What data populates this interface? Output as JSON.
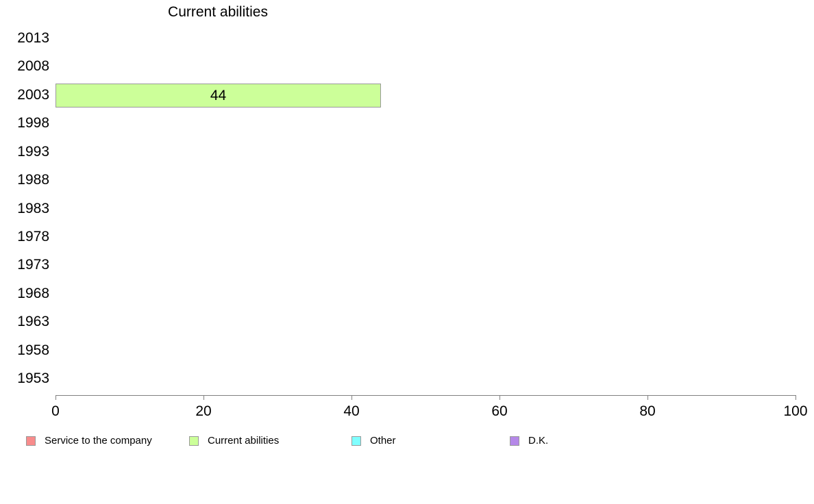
{
  "chart_data": {
    "type": "bar",
    "orientation": "horizontal",
    "title": "Current abilities",
    "categories": [
      "2013",
      "2008",
      "2003",
      "1998",
      "1993",
      "1988",
      "1983",
      "1978",
      "1973",
      "1968",
      "1963",
      "1958",
      "1953"
    ],
    "series": [
      {
        "name": "Service to the company",
        "color": "#F88C8C",
        "values": [
          null,
          null,
          null,
          null,
          null,
          null,
          null,
          null,
          null,
          null,
          null,
          null,
          null
        ]
      },
      {
        "name": "Current abilities",
        "color": "#CCFF99",
        "values": [
          null,
          null,
          44,
          null,
          null,
          null,
          null,
          null,
          null,
          null,
          null,
          null,
          null
        ]
      },
      {
        "name": "Other",
        "color": "#80FFFF",
        "values": [
          null,
          null,
          null,
          null,
          null,
          null,
          null,
          null,
          null,
          null,
          null,
          null,
          null
        ]
      },
      {
        "name": "D.K.",
        "color": "#B588E8",
        "values": [
          null,
          null,
          null,
          null,
          null,
          null,
          null,
          null,
          null,
          null,
          null,
          null,
          null
        ]
      }
    ],
    "bar_value_labels_shown": true,
    "xlabel": "",
    "ylabel": "",
    "xlim": [
      0,
      100
    ],
    "x_ticks": [
      0,
      20,
      40,
      60,
      80,
      100
    ],
    "grid": false,
    "legend_position": "bottom",
    "legend": [
      {
        "label": "Service to the company",
        "color": "#F88C8C"
      },
      {
        "label": "Current abilities",
        "color": "#CCFF99"
      },
      {
        "label": "Other",
        "color": "#80FFFF"
      },
      {
        "label": "D.K.",
        "color": "#B588E8"
      }
    ]
  }
}
